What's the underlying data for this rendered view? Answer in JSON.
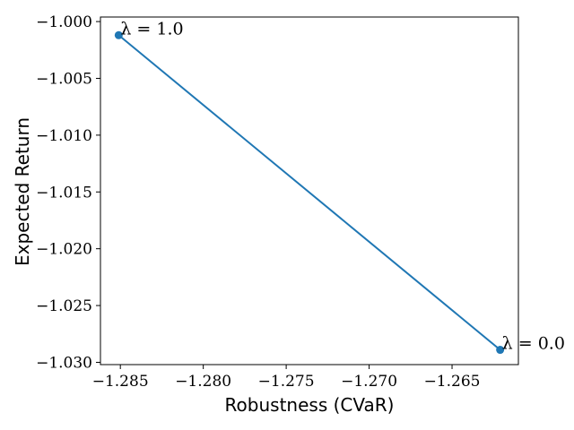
{
  "chart_data": {
    "type": "line",
    "xlabel": "Robustness (CVaR)",
    "ylabel": "Expected Return",
    "xlim": [
      -1.2862,
      -1.261
    ],
    "ylim": [
      -1.0302,
      -0.9996
    ],
    "x_ticks": [
      -1.285,
      -1.28,
      -1.275,
      -1.27,
      -1.265
    ],
    "x_tick_labels": [
      "−1.285",
      "−1.280",
      "−1.275",
      "−1.270",
      "−1.265"
    ],
    "y_ticks": [
      -1.0,
      -1.005,
      -1.01,
      -1.015,
      -1.02,
      -1.025,
      -1.03
    ],
    "y_tick_labels": [
      "−1.000",
      "−1.005",
      "−1.010",
      "−1.015",
      "−1.020",
      "−1.025",
      "−1.030"
    ],
    "grid": false,
    "series": [
      {
        "points": [
          {
            "x": -1.2851,
            "y": -1.0012
          },
          {
            "x": -1.2621,
            "y": -1.0289
          }
        ],
        "color": "#1f77b4"
      }
    ],
    "annotations": [
      {
        "text": "λ = 1.0",
        "x": -1.2851,
        "y": -1.0012
      },
      {
        "text": "λ = 0.0",
        "x": -1.2621,
        "y": -1.0289
      }
    ]
  }
}
